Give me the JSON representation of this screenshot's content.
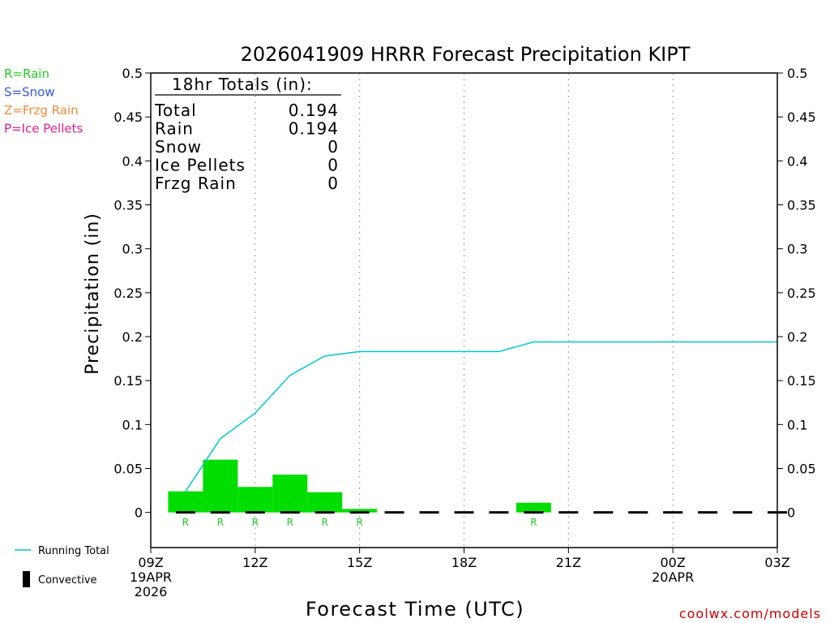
{
  "chart_data": {
    "type": "bar",
    "title": "2026041909 HRRR Forecast Precipitation KIPT",
    "xlabel": "Forecast Time (UTC)",
    "ylabel": "Precipitation (in)",
    "xlim": [
      0,
      18
    ],
    "ylim": [
      -0.04,
      0.5
    ],
    "y_ticks": [
      0,
      0.05,
      0.1,
      0.15,
      0.2,
      0.25,
      0.3,
      0.35,
      0.4,
      0.45,
      0.5
    ],
    "y_tick_labels": [
      "0",
      "0.05",
      "0.1",
      "0.15",
      "0.2",
      "0.25",
      "0.3",
      "0.35",
      "0.4",
      "0.45",
      "0.5"
    ],
    "x_ticks": [
      {
        "hour": 0,
        "lines": [
          "09Z",
          "19APR",
          "2026"
        ]
      },
      {
        "hour": 3,
        "lines": [
          "12Z"
        ]
      },
      {
        "hour": 6,
        "lines": [
          "15Z"
        ]
      },
      {
        "hour": 9,
        "lines": [
          "18Z"
        ]
      },
      {
        "hour": 12,
        "lines": [
          "21Z"
        ]
      },
      {
        "hour": 15,
        "lines": [
          "00Z",
          "20APR"
        ]
      },
      {
        "hour": 18,
        "lines": [
          "03Z"
        ]
      }
    ],
    "gridlines_x": [
      3,
      6,
      9,
      12,
      15
    ],
    "hourly_precip": {
      "name": "Rain",
      "color": "#00dd00",
      "hours": [
        1,
        2,
        3,
        4,
        5,
        6,
        7,
        8,
        9,
        10,
        11,
        12,
        13,
        14,
        15,
        16,
        17,
        18
      ],
      "values": [
        0.024,
        0.06,
        0.029,
        0.043,
        0.023,
        0.004,
        0,
        0,
        0,
        0,
        0.011,
        0,
        0,
        0,
        0,
        0,
        0,
        0
      ]
    },
    "running_total": {
      "name": "Running Total",
      "color": "#00c8c8",
      "hours": [
        1,
        2,
        3,
        4,
        5,
        6,
        7,
        8,
        9,
        10,
        11,
        12,
        13,
        14,
        15,
        16,
        17,
        18
      ],
      "values": [
        0.024,
        0.084,
        0.113,
        0.156,
        0.178,
        0.183,
        0.183,
        0.183,
        0.183,
        0.183,
        0.194,
        0.194,
        0.194,
        0.194,
        0.194,
        0.194,
        0.194,
        0.194
      ]
    },
    "convective": {
      "name": "Convective",
      "values": [
        0,
        0,
        0,
        0,
        0,
        0,
        0,
        0,
        0,
        0,
        0,
        0,
        0,
        0,
        0,
        0,
        0,
        0
      ]
    },
    "ptype_markers": [
      {
        "hour": 1,
        "label": "R"
      },
      {
        "hour": 2,
        "label": "R"
      },
      {
        "hour": 3,
        "label": "R"
      },
      {
        "hour": 4,
        "label": "R"
      },
      {
        "hour": 5,
        "label": "R"
      },
      {
        "hour": 6,
        "label": "R"
      },
      {
        "hour": 11,
        "label": "R"
      }
    ],
    "totals_box": {
      "heading": "18hr Totals (in):",
      "rows": [
        {
          "label": "Total",
          "value": "0.194"
        },
        {
          "label": "Rain",
          "value": "0.194"
        },
        {
          "label": "Snow",
          "value": "0"
        },
        {
          "label": "Ice Pellets",
          "value": "0"
        },
        {
          "label": "Frzg Rain",
          "value": "0"
        }
      ]
    },
    "type_legend": [
      {
        "text": "R=Rain",
        "color": "#22cc22"
      },
      {
        "text": "S=Snow",
        "color": "#3355ee"
      },
      {
        "text": "Z=Frzg Rain",
        "color": "#f08a3a"
      },
      {
        "text": "P=Ice Pellets",
        "color": "#e0208a"
      }
    ],
    "bottom_legend": [
      {
        "text": "Running Total",
        "kind": "line",
        "color": "#00c8c8"
      },
      {
        "text": "Convective",
        "kind": "box",
        "color": "#000000"
      }
    ],
    "credit": "coolwx.com/models",
    "credit_color": "#cc0000"
  }
}
